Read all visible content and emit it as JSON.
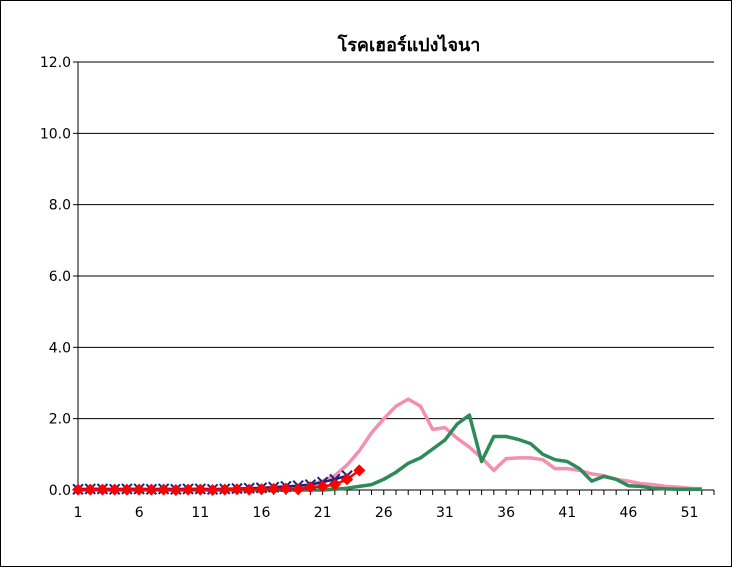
{
  "chart_data": {
    "type": "line",
    "title": "โรคเฮอร์แปงไจนา",
    "xlabel": "",
    "ylabel": "",
    "ylim": [
      0,
      12
    ],
    "xlim": [
      1,
      53
    ],
    "y_ticks": [
      "0.0",
      "2.0",
      "4.0",
      "6.0",
      "8.0",
      "10.0",
      "12.0"
    ],
    "x_ticks": [
      "1",
      "6",
      "11",
      "16",
      "21",
      "26",
      "31",
      "36",
      "41",
      "46",
      "51"
    ],
    "grid": true,
    "legend": "none",
    "series": [
      {
        "color": "#f48fb1",
        "marker": "none",
        "x": [
          1,
          2,
          3,
          4,
          5,
          6,
          7,
          8,
          9,
          10,
          11,
          12,
          13,
          14,
          15,
          16,
          17,
          18,
          19,
          20,
          21,
          22,
          23,
          24,
          25,
          26,
          27,
          28,
          29,
          30,
          31,
          32,
          33,
          34,
          35,
          36,
          37,
          38,
          39,
          40,
          41,
          42,
          43,
          44,
          45,
          46,
          47,
          48,
          49,
          50,
          51,
          52
        ],
        "values": [
          0.02,
          0.02,
          0.02,
          0.02,
          0.02,
          0.02,
          0.02,
          0.02,
          0.02,
          0.02,
          0.02,
          0.02,
          0.02,
          0.03,
          0.03,
          0.04,
          0.05,
          0.07,
          0.1,
          0.15,
          0.25,
          0.4,
          0.7,
          1.1,
          1.6,
          2.0,
          2.35,
          2.55,
          2.35,
          1.7,
          1.75,
          1.45,
          1.2,
          0.9,
          0.55,
          0.88,
          0.9,
          0.9,
          0.85,
          0.6,
          0.6,
          0.55,
          0.45,
          0.4,
          0.3,
          0.25,
          0.18,
          0.15,
          0.1,
          0.08,
          0.05,
          0.03
        ]
      },
      {
        "color": "#2e8b57",
        "marker": "none",
        "x": [
          1,
          2,
          3,
          4,
          5,
          6,
          7,
          8,
          9,
          10,
          11,
          12,
          13,
          14,
          15,
          16,
          17,
          18,
          19,
          20,
          21,
          22,
          23,
          24,
          25,
          26,
          27,
          28,
          29,
          30,
          31,
          32,
          33,
          34,
          35,
          36,
          37,
          38,
          39,
          40,
          41,
          42,
          43,
          44,
          45,
          46,
          47,
          48,
          49,
          50,
          51,
          52
        ],
        "values": [
          0,
          0,
          0,
          0,
          0,
          0,
          0,
          0,
          0,
          0,
          0,
          0,
          0,
          0,
          0,
          0,
          0,
          0,
          0,
          0,
          0,
          0.02,
          0.05,
          0.1,
          0.15,
          0.3,
          0.5,
          0.75,
          0.9,
          1.15,
          1.4,
          1.85,
          2.1,
          0.8,
          1.5,
          1.5,
          1.42,
          1.3,
          1.0,
          0.85,
          0.8,
          0.6,
          0.25,
          0.38,
          0.3,
          0.12,
          0.1,
          0.05,
          0.03,
          0.02,
          0.02,
          0.02
        ]
      },
      {
        "color": "#1a237e",
        "marker": "x",
        "x": [
          1,
          2,
          3,
          4,
          5,
          6,
          7,
          8,
          9,
          10,
          11,
          12,
          13,
          14,
          15,
          16,
          17,
          18,
          19,
          20,
          21,
          22,
          23
        ],
        "values": [
          0.02,
          0.03,
          0.03,
          0.02,
          0.03,
          0.03,
          0.02,
          0.03,
          0.02,
          0.03,
          0.03,
          0.02,
          0.03,
          0.04,
          0.05,
          0.06,
          0.08,
          0.1,
          0.12,
          0.15,
          0.22,
          0.3,
          0.4
        ]
      },
      {
        "color": "#ff0000",
        "marker": "diamond",
        "x": [
          1,
          2,
          3,
          4,
          5,
          6,
          7,
          8,
          9,
          10,
          11,
          12,
          13,
          14,
          15,
          16,
          17,
          18,
          19,
          20,
          21,
          22,
          23,
          24
        ],
        "values": [
          0.01,
          0.01,
          0.01,
          0.01,
          0.01,
          0.01,
          0.01,
          0.01,
          0.0,
          0.01,
          0.01,
          0.0,
          0.01,
          0.02,
          0.01,
          0.02,
          0.03,
          0.04,
          0.02,
          0.08,
          0.1,
          0.15,
          0.3,
          0.55
        ]
      }
    ]
  }
}
